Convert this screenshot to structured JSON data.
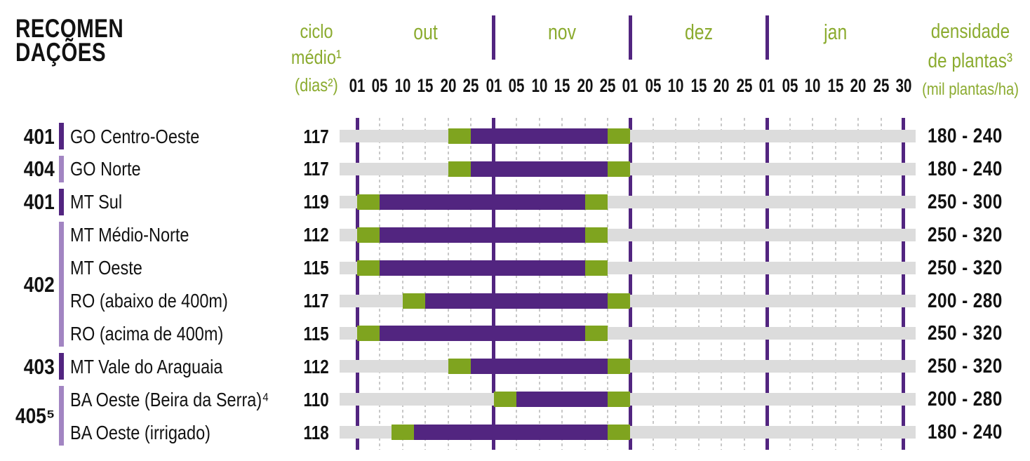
{
  "title": {
    "line1": "RECOMEN",
    "line2": "DAÇÕES"
  },
  "header": {
    "cycle_col": {
      "title_line1": "ciclo",
      "title_line2": "médio¹",
      "unit": "(dias²)"
    },
    "density_col": {
      "title_line1": "densidade",
      "title_line2": "de plantas³",
      "unit": "(mil plantas/ha)"
    },
    "months": [
      "out",
      "nov",
      "dez",
      "jan"
    ],
    "day_labels": [
      "01",
      "05",
      "10",
      "15",
      "20",
      "25"
    ],
    "jan_last_label": "30"
  },
  "colors": {
    "green": "#7fa41f",
    "purple": "#522580",
    "light_purple": "#a285c2",
    "track_gray": "#dcdcdc",
    "grid_dotted": "#c8c8c8",
    "text_green": "#8bab2f",
    "text_dark": "#121212"
  },
  "chart_data": {
    "type": "gantt",
    "title": "RECOMENDAÇÕES",
    "timeline": {
      "months": [
        "out",
        "nov",
        "dez",
        "jan"
      ],
      "ticks_per_month": [
        "01",
        "05",
        "10",
        "15",
        "20",
        "25"
      ],
      "last_tick": "30 jan",
      "solid_gridlines_at": [
        "01 out",
        "01 nov",
        "01 dez",
        "01 jan",
        "30 jan"
      ],
      "dotted_gridlines_at": [
        "05",
        "10",
        "15",
        "20",
        "25 of each month"
      ]
    },
    "units": {
      "cycle": "dias",
      "density": "mil plantas/ha"
    },
    "groups": [
      {
        "code": "401",
        "rows": [
          0
        ],
        "shade": "dark"
      },
      {
        "code": "404",
        "rows": [
          1
        ],
        "shade": "light"
      },
      {
        "code": "401",
        "rows": [
          2
        ],
        "shade": "dark"
      },
      {
        "code": "402",
        "rows": [
          3,
          4,
          5,
          6
        ],
        "shade": "light"
      },
      {
        "code": "403",
        "rows": [
          7
        ],
        "shade": "dark"
      },
      {
        "code": "405⁵",
        "rows": [
          8,
          9
        ],
        "shade": "light"
      }
    ],
    "rows": [
      {
        "region": "GO Centro-Oeste",
        "cycle_days": "117",
        "density": "180 - 240",
        "window": {
          "start": "20 out",
          "end": "01 dez"
        },
        "ideal": {
          "start": "25 out",
          "end": "25 nov"
        },
        "slots": {
          "g1": [
            4,
            5
          ],
          "p": [
            5,
            11
          ],
          "g2": [
            11,
            12
          ]
        }
      },
      {
        "region": "GO Norte",
        "cycle_days": "117",
        "density": "180 - 240",
        "window": {
          "start": "20 out",
          "end": "01 dez"
        },
        "ideal": {
          "start": "25 out",
          "end": "25 nov"
        },
        "slots": {
          "g1": [
            4,
            5
          ],
          "p": [
            5,
            11
          ],
          "g2": [
            11,
            12
          ]
        }
      },
      {
        "region": "MT Sul",
        "cycle_days": "119",
        "density": "250 - 300",
        "window": {
          "start": "01 out",
          "end": "25 nov"
        },
        "ideal": {
          "start": "05 out",
          "end": "20 nov"
        },
        "slots": {
          "g1": [
            0,
            1
          ],
          "p": [
            1,
            10
          ],
          "g2": [
            10,
            11
          ]
        }
      },
      {
        "region": "MT Médio-Norte",
        "cycle_days": "112",
        "density": "250 - 320",
        "window": {
          "start": "01 out",
          "end": "25 nov"
        },
        "ideal": {
          "start": "05 out",
          "end": "20 nov"
        },
        "slots": {
          "g1": [
            0,
            1
          ],
          "p": [
            1,
            10
          ],
          "g2": [
            10,
            11
          ]
        }
      },
      {
        "region": "MT Oeste",
        "cycle_days": "115",
        "density": "250 - 320",
        "window": {
          "start": "01 out",
          "end": "25 nov"
        },
        "ideal": {
          "start": "05 out",
          "end": "20 nov"
        },
        "slots": {
          "g1": [
            0,
            1
          ],
          "p": [
            1,
            10
          ],
          "g2": [
            10,
            11
          ]
        }
      },
      {
        "region": "RO (abaixo de 400m)",
        "cycle_days": "117",
        "density": "200 - 280",
        "window": {
          "start": "10 out",
          "end": "01 dez"
        },
        "ideal": {
          "start": "15 out",
          "end": "25 nov"
        },
        "slots": {
          "g1": [
            2,
            3
          ],
          "p": [
            3,
            11
          ],
          "g2": [
            11,
            12
          ]
        }
      },
      {
        "region": "RO (acima de 400m)",
        "cycle_days": "115",
        "density": "250 - 320",
        "window": {
          "start": "01 out",
          "end": "25 nov"
        },
        "ideal": {
          "start": "05 out",
          "end": "20 nov"
        },
        "slots": {
          "g1": [
            0,
            1
          ],
          "p": [
            1,
            10
          ],
          "g2": [
            10,
            11
          ]
        }
      },
      {
        "region": "MT Vale do Araguaia",
        "cycle_days": "112",
        "density": "250 - 320",
        "window": {
          "start": "20 out",
          "end": "01 dez"
        },
        "ideal": {
          "start": "25 out",
          "end": "25 nov"
        },
        "slots": {
          "g1": [
            4,
            5
          ],
          "p": [
            5,
            11
          ],
          "g2": [
            11,
            12
          ]
        }
      },
      {
        "region": "BA Oeste (Beira da Serra)⁴",
        "cycle_days": "110",
        "density": "200 - 280",
        "window": {
          "start": "01 nov",
          "end": "01 dez"
        },
        "ideal": {
          "start": "05 nov",
          "end": "25 nov"
        },
        "slots": {
          "g1": [
            6,
            7
          ],
          "p": [
            7,
            11
          ],
          "g2": [
            11,
            12
          ]
        }
      },
      {
        "region": "BA Oeste (irrigado)",
        "cycle_days": "118",
        "density": "180 - 240",
        "window": {
          "start": "08 out",
          "end": "01 dez"
        },
        "ideal": {
          "start": "12 out",
          "end": "25 nov"
        },
        "slots": {
          "g1": [
            1.5,
            2.5
          ],
          "p": [
            2.5,
            11
          ],
          "g2": [
            11,
            12
          ]
        }
      }
    ]
  }
}
